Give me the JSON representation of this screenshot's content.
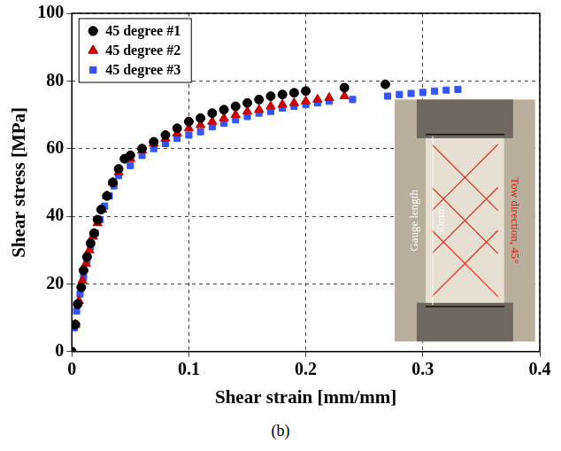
{
  "chart_data": {
    "type": "scatter",
    "caption": "(b)",
    "x_label": "Shear strain [mm/mm]",
    "y_label": "Shear stress [MPa]",
    "xlim": [
      0,
      0.4
    ],
    "xticks": [
      0,
      0.1,
      0.2,
      0.3,
      0.4
    ],
    "ylim": [
      0,
      100
    ],
    "yticks": [
      0,
      20,
      40,
      60,
      80,
      100
    ],
    "grid": true,
    "legend": "top-left",
    "annotations": [
      "Gauge length 50mm",
      "Tow direction, 45°"
    ],
    "series": [
      {
        "name": "45 degree #1",
        "color": "#000000",
        "marker": "circle",
        "x": [
          0,
          0.003,
          0.005,
          0.008,
          0.01,
          0.013,
          0.016,
          0.019,
          0.022,
          0.025,
          0.03,
          0.035,
          0.04,
          0.045,
          0.05,
          0.06,
          0.07,
          0.08,
          0.09,
          0.1,
          0.11,
          0.12,
          0.13,
          0.14,
          0.15,
          0.16,
          0.17,
          0.18,
          0.19,
          0.2,
          0.233,
          0.268
        ],
        "values": [
          0,
          8,
          14,
          19,
          24,
          28,
          32,
          35,
          39,
          42,
          46,
          50,
          54,
          57,
          58,
          60,
          62,
          64,
          66,
          68,
          69,
          70.5,
          71.5,
          72.5,
          73.5,
          74.5,
          75.5,
          76,
          76.5,
          77,
          78,
          79
        ]
      },
      {
        "name": "45 degree #2",
        "color": "#cc0000",
        "marker": "triangle",
        "x": [
          0,
          0.003,
          0.006,
          0.009,
          0.012,
          0.015,
          0.018,
          0.022,
          0.026,
          0.03,
          0.035,
          0.04,
          0.05,
          0.06,
          0.07,
          0.08,
          0.09,
          0.1,
          0.11,
          0.12,
          0.13,
          0.14,
          0.15,
          0.16,
          0.17,
          0.18,
          0.19,
          0.2,
          0.21,
          0.22,
          0.233
        ],
        "values": [
          0,
          8,
          15,
          21,
          26,
          30,
          34,
          38,
          42,
          46,
          50,
          53,
          57,
          59.5,
          61.5,
          63,
          64.5,
          66,
          67,
          68,
          69,
          70,
          71,
          71.5,
          72.5,
          73,
          73.5,
          74,
          74.5,
          75,
          75.5
        ]
      },
      {
        "name": "45 degree #3",
        "color": "#3355ff",
        "marker": "square",
        "x": [
          0,
          0.002,
          0.004,
          0.007,
          0.01,
          0.013,
          0.016,
          0.02,
          0.024,
          0.028,
          0.032,
          0.036,
          0.04,
          0.05,
          0.06,
          0.07,
          0.08,
          0.09,
          0.1,
          0.11,
          0.12,
          0.13,
          0.14,
          0.15,
          0.16,
          0.17,
          0.18,
          0.19,
          0.2,
          0.21,
          0.22,
          0.24,
          0.27,
          0.28,
          0.29,
          0.3,
          0.31,
          0.32,
          0.33
        ],
        "values": [
          0,
          7,
          12,
          17,
          22,
          27,
          31,
          35,
          39,
          43,
          46,
          49,
          52,
          55,
          58,
          60,
          61.5,
          63,
          64,
          65,
          66.5,
          67.5,
          68.5,
          69.5,
          70.5,
          71,
          72,
          72.5,
          73,
          73.5,
          74,
          74.5,
          75.5,
          76,
          76.3,
          76.6,
          77,
          77.3,
          77.5
        ]
      }
    ]
  }
}
